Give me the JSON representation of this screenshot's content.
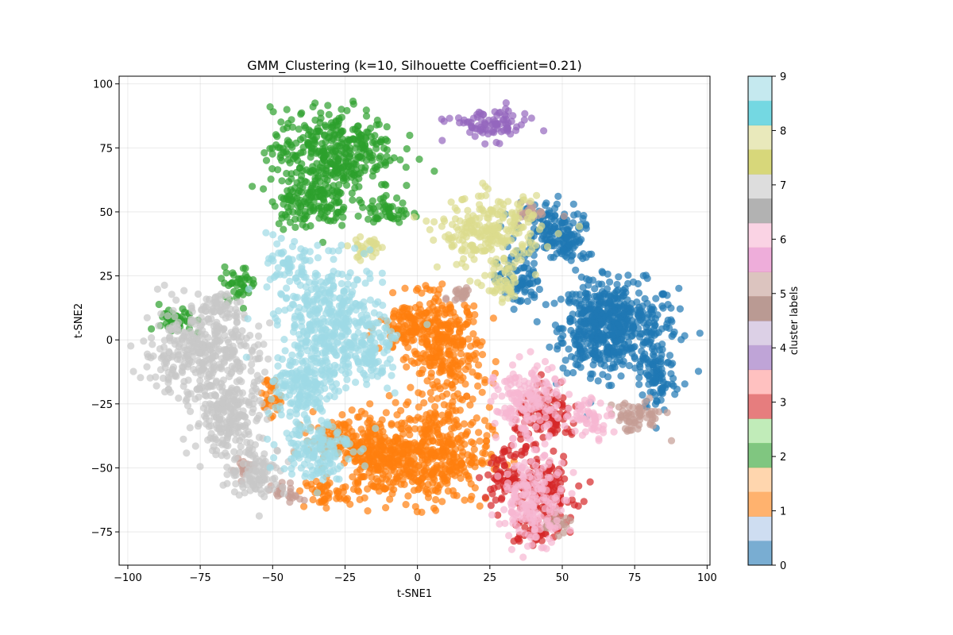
{
  "chart_data": {
    "type": "scatter",
    "title": "GMM_Clustering (k=10, Silhouette Coefficient=0.21)",
    "xlabel": "t-SNE1",
    "ylabel": "t-SNE2",
    "xlim": [
      -103,
      101
    ],
    "ylim": [
      -88,
      103
    ],
    "xticks": [
      -100,
      -75,
      -50,
      -25,
      0,
      25,
      50,
      75,
      100
    ],
    "yticks": [
      -75,
      -50,
      -25,
      0,
      25,
      50,
      75,
      100
    ],
    "grid": true,
    "colorbar": {
      "label": "cluster labels",
      "ticks": [
        0,
        1,
        2,
        3,
        4,
        5,
        6,
        7,
        8,
        9
      ],
      "colors": [
        "#1f77b4",
        "#aec7e8",
        "#ff7f0e",
        "#ffbb78",
        "#2ca02c",
        "#98df8a",
        "#d62728",
        "#ff9896",
        "#9467bd",
        "#c5b0d5",
        "#8c564b",
        "#c49c94",
        "#e377c2",
        "#f7b6d2",
        "#7f7f7f",
        "#c7c7c7",
        "#bcbd22",
        "#dbdb8d",
        "#17becf",
        "#9edae5"
      ]
    },
    "series": [
      {
        "cluster": 0,
        "color": "#1f77b4",
        "regions": [
          [
            70,
            5,
            16,
            14
          ],
          [
            62,
            5,
            10,
            14
          ],
          [
            83,
            -15,
            5,
            11
          ],
          [
            45,
            43,
            9,
            9
          ],
          [
            35,
            23,
            6,
            8
          ],
          [
            53,
            37,
            5,
            6
          ]
        ]
      },
      {
        "cluster": 1,
        "color": "#ff7f0e",
        "regions": [
          [
            10,
            -5,
            10,
            18
          ],
          [
            -2,
            5,
            9,
            9
          ],
          [
            5,
            -45,
            16,
            15
          ],
          [
            -13,
            -45,
            11,
            13
          ],
          [
            -27,
            -39,
            9,
            6
          ],
          [
            -33,
            -60,
            5,
            5
          ],
          [
            -51,
            -22,
            3,
            6
          ]
        ]
      },
      {
        "cluster": 2,
        "color": "#2ca02c",
        "regions": [
          [
            -29,
            74,
            17,
            13
          ],
          [
            -37,
            55,
            11,
            9
          ],
          [
            -10,
            50,
            6,
            5
          ],
          [
            -62,
            22,
            5,
            5
          ],
          [
            -83,
            7,
            5,
            5
          ]
        ]
      },
      {
        "cluster": 3,
        "color": "#d62728",
        "regions": [
          [
            45,
            -30,
            9,
            8
          ],
          [
            43,
            -60,
            9,
            12
          ],
          [
            30,
            -53,
            5,
            8
          ],
          [
            40,
            -76,
            6,
            3
          ]
        ]
      },
      {
        "cluster": 4,
        "color": "#9467bd",
        "regions": [
          [
            25,
            84,
            11,
            5
          ]
        ]
      },
      {
        "cluster": 5,
        "color": "#c49c94",
        "regions": [
          [
            75,
            -30,
            8,
            5
          ],
          [
            40,
            50,
            4,
            3
          ],
          [
            -45,
            -60,
            4,
            3
          ],
          [
            15,
            18,
            3,
            3
          ],
          [
            -60,
            -50,
            3,
            3
          ],
          [
            48,
            -72,
            4,
            3
          ]
        ]
      },
      {
        "cluster": 6,
        "color": "#f7b6d2",
        "regions": [
          [
            38,
            -25,
            9,
            12
          ],
          [
            40,
            -63,
            9,
            13
          ],
          [
            60,
            -30,
            6,
            6
          ]
        ]
      },
      {
        "cluster": 7,
        "color": "#c7c7c7",
        "regions": [
          [
            -75,
            -5,
            16,
            14
          ],
          [
            -65,
            -30,
            10,
            13
          ],
          [
            -55,
            -52,
            8,
            8
          ],
          [
            -68,
            13,
            6,
            5
          ]
        ]
      },
      {
        "cluster": 8,
        "color": "#dbdb8d",
        "regions": [
          [
            25,
            42,
            14,
            11
          ],
          [
            30,
            20,
            5,
            5
          ],
          [
            -17,
            36,
            5,
            4
          ]
        ]
      },
      {
        "cluster": 9,
        "color": "#9edae5",
        "regions": [
          [
            -30,
            5,
            15,
            20
          ],
          [
            -35,
            -42,
            10,
            10
          ],
          [
            -40,
            -20,
            8,
            10
          ],
          [
            -45,
            30,
            5,
            6
          ],
          [
            -15,
            -5,
            5,
            8
          ]
        ]
      }
    ]
  }
}
